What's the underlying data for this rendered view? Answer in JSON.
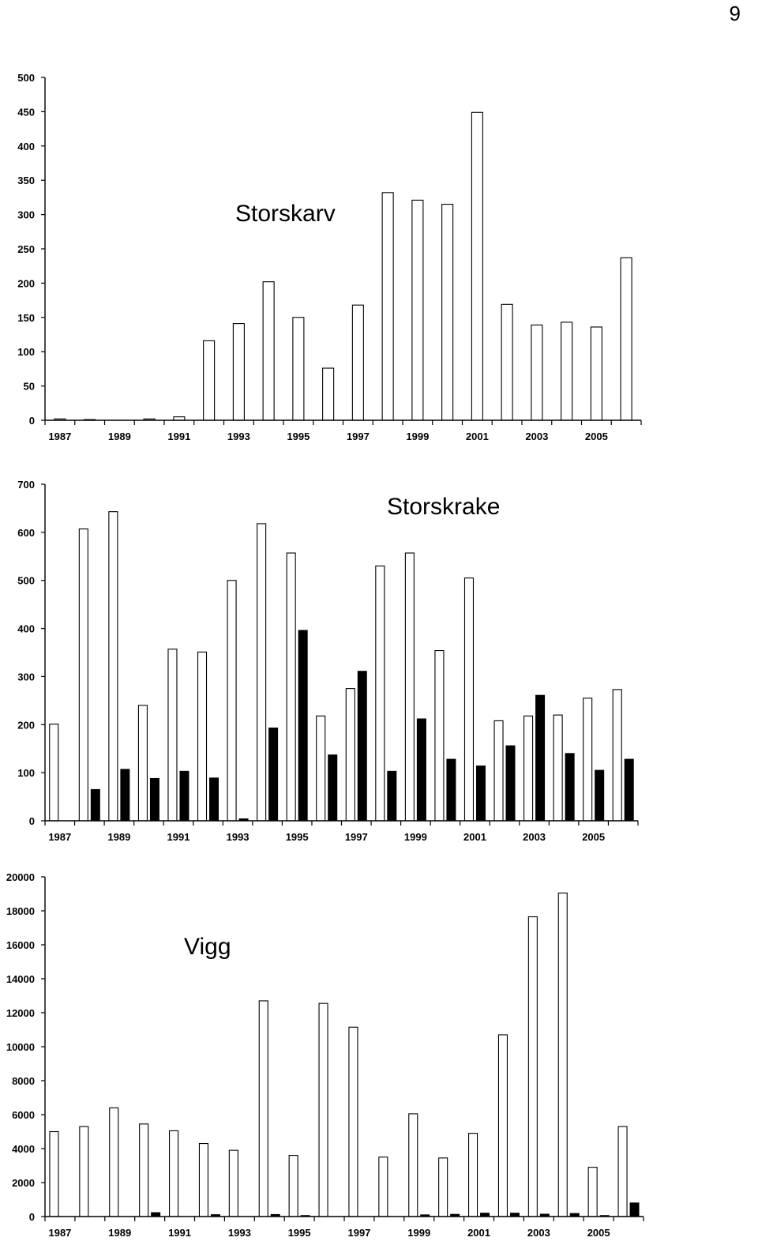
{
  "page_number": "9",
  "chart_data": [
    {
      "type": "bar",
      "title": "Storskarv",
      "categories": [
        "1987",
        "1988",
        "1989",
        "1990",
        "1991",
        "1992",
        "1993",
        "1994",
        "1995",
        "1996",
        "1997",
        "1998",
        "1999",
        "2000",
        "2001",
        "2002",
        "2003",
        "2004",
        "2005",
        "2006"
      ],
      "tick_labels": [
        "1987",
        "1989",
        "1991",
        "1993",
        "1995",
        "1997",
        "1999",
        "2001",
        "2003",
        "2005"
      ],
      "xlabel": "",
      "ylabel": "",
      "ylim": [
        0,
        500
      ],
      "yticks": [
        0,
        50,
        100,
        150,
        200,
        250,
        300,
        350,
        400,
        450,
        500
      ],
      "series": [
        {
          "style": "open",
          "values": [
            2,
            1,
            0,
            2,
            5,
            116,
            141,
            202,
            150,
            76,
            168,
            332,
            321,
            315,
            449,
            169,
            139,
            143,
            136,
            237
          ]
        }
      ]
    },
    {
      "type": "bar",
      "title": "Storskrake",
      "categories": [
        "1987",
        "1988",
        "1989",
        "1990",
        "1991",
        "1992",
        "1993",
        "1994",
        "1995",
        "1996",
        "1997",
        "1998",
        "1999",
        "2000",
        "2001",
        "2002",
        "2003",
        "2004",
        "2005",
        "2006"
      ],
      "tick_labels": [
        "1987",
        "1989",
        "1991",
        "1993",
        "1995",
        "1997",
        "1999",
        "2001",
        "2003",
        "2005"
      ],
      "xlabel": "",
      "ylabel": "",
      "ylim": [
        0,
        700
      ],
      "yticks": [
        0,
        100,
        200,
        300,
        400,
        500,
        600,
        700
      ],
      "series": [
        {
          "style": "open",
          "values": [
            201,
            607,
            643,
            240,
            357,
            351,
            500,
            618,
            557,
            218,
            275,
            530,
            557,
            354,
            505,
            208,
            218,
            220,
            255,
            273
          ]
        },
        {
          "style": "filled",
          "values": [
            0,
            65,
            107,
            88,
            103,
            89,
            4,
            193,
            396,
            137,
            311,
            103,
            212,
            128,
            114,
            156,
            261,
            140,
            105,
            128
          ]
        }
      ]
    },
    {
      "type": "bar",
      "title": "Vigg",
      "categories": [
        "1987",
        "1988",
        "1989",
        "1990",
        "1991",
        "1992",
        "1993",
        "1994",
        "1995",
        "1996",
        "1997",
        "1998",
        "1999",
        "2000",
        "2001",
        "2002",
        "2003",
        "2004",
        "2005",
        "2006"
      ],
      "tick_labels": [
        "1987",
        "1989",
        "1991",
        "1993",
        "1995",
        "1997",
        "1999",
        "2001",
        "2003",
        "2005"
      ],
      "xlabel": "",
      "ylabel": "",
      "ylim": [
        0,
        20000
      ],
      "yticks": [
        0,
        2000,
        4000,
        6000,
        8000,
        10000,
        12000,
        14000,
        16000,
        18000,
        20000
      ],
      "series": [
        {
          "style": "open",
          "values": [
            5000,
            5300,
            6400,
            5450,
            5050,
            4300,
            3900,
            12700,
            3600,
            12550,
            11150,
            3500,
            6050,
            3450,
            4900,
            10700,
            17650,
            19050,
            2900,
            5300
          ]
        },
        {
          "style": "filled",
          "values": [
            0,
            0,
            0,
            230,
            0,
            110,
            0,
            120,
            60,
            0,
            0,
            0,
            100,
            130,
            200,
            200,
            140,
            180,
            60,
            800
          ]
        }
      ]
    }
  ]
}
